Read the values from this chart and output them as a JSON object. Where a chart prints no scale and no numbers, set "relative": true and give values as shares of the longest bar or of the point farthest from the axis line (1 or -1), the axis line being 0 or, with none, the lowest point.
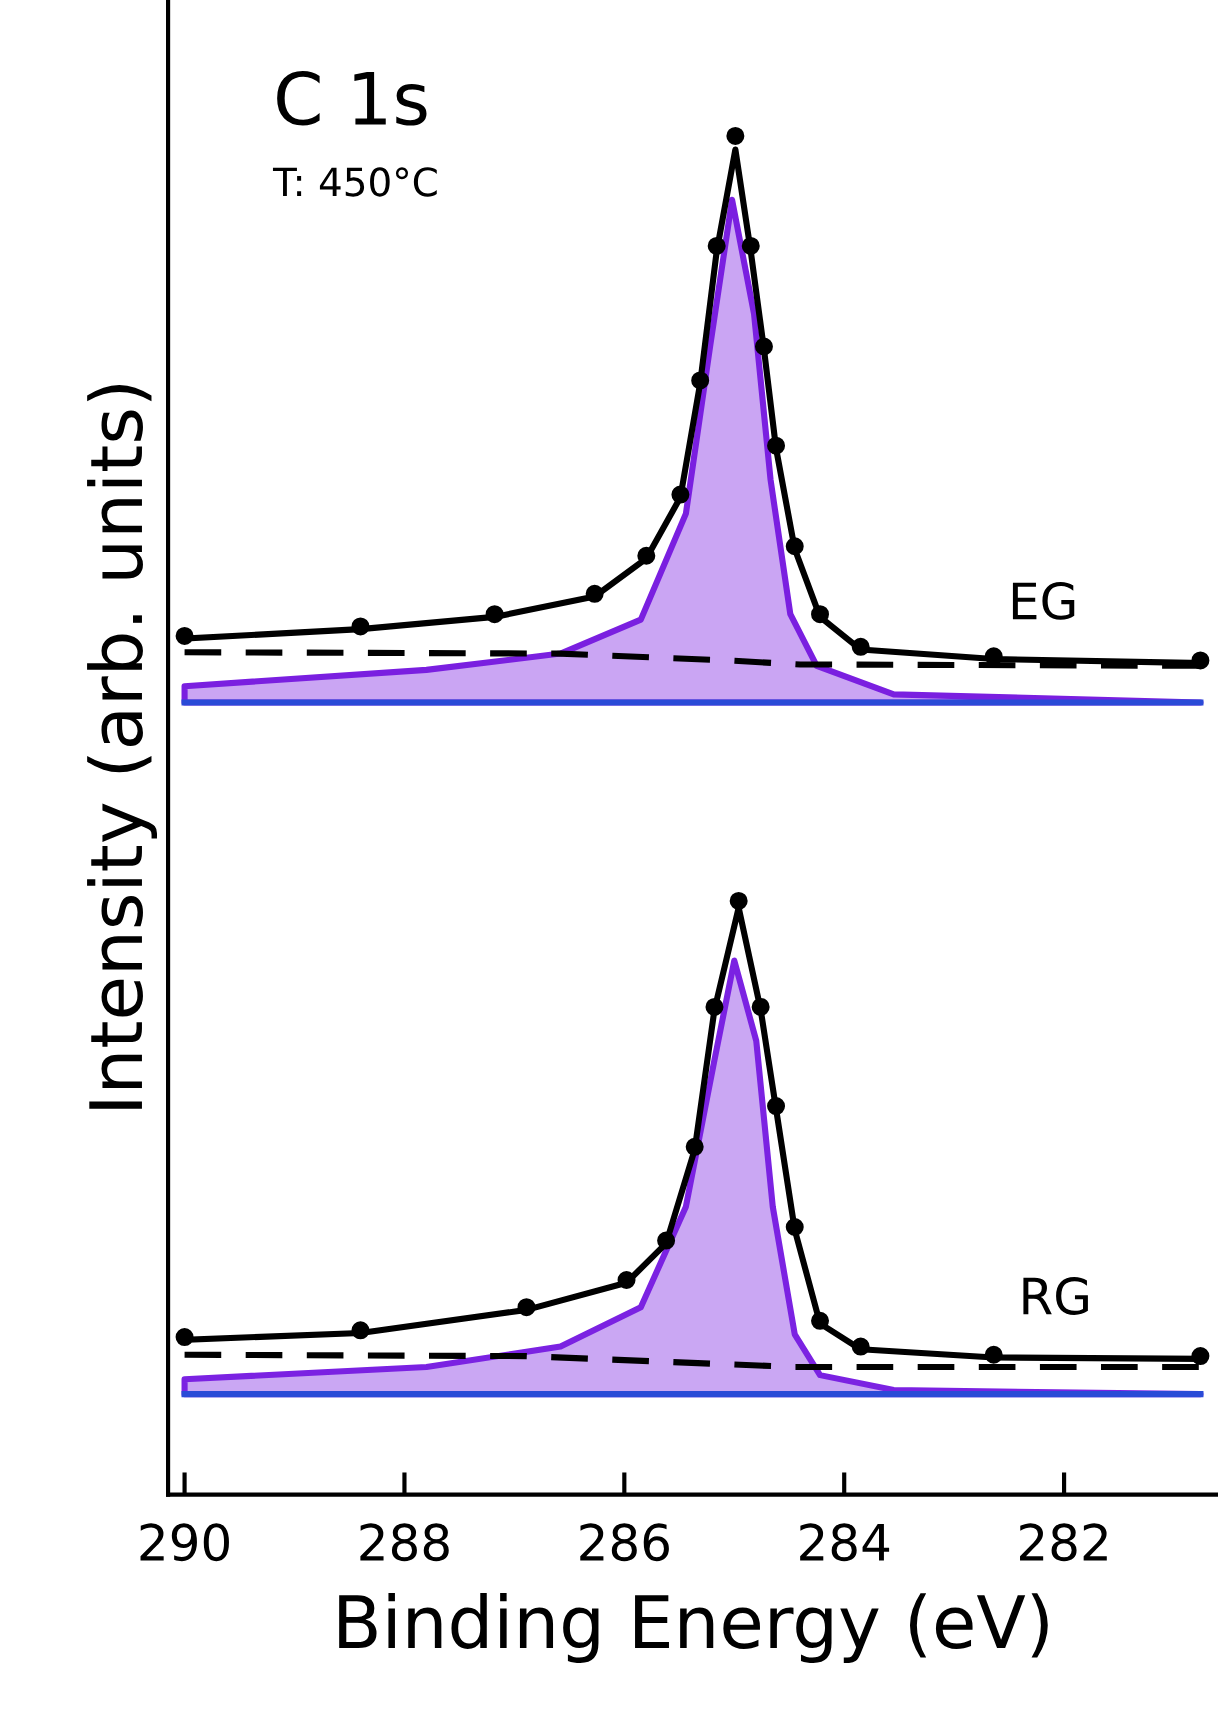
{
  "chart_data": {
    "type": "line",
    "relative": true,
    "xlabel": "Binding Energy (eV)",
    "ylabel": "Intensity (arb. units)",
    "xlim": [
      290.15,
      280.6
    ],
    "xticks": [
      290,
      288,
      286,
      284,
      282
    ],
    "grid": false,
    "legend": false,
    "tick_labels": "x",
    "series": [
      {
        "type": "scatter",
        "marker": "circle",
        "color": "#000000",
        "x": [
          290.0,
          288.4,
          287.18,
          286.27,
          285.8,
          285.49,
          285.31,
          285.16,
          284.99,
          284.85,
          284.73,
          284.62,
          284.45,
          284.22,
          283.85,
          282.64,
          280.76
        ],
        "values": [
          0.632,
          0.639,
          0.648,
          0.663,
          0.691,
          0.736,
          0.82,
          0.919,
          1.0,
          0.919,
          0.845,
          0.772,
          0.698,
          0.648,
          0.624,
          0.617,
          0.614
        ]
      },
      {
        "line_style": "solid",
        "color": "#000000",
        "x": [
          290.0,
          288.4,
          287.18,
          286.27,
          285.8,
          285.49,
          285.31,
          285.16,
          284.99,
          284.85,
          284.73,
          284.62,
          284.45,
          284.22,
          283.85,
          282.64,
          280.76
        ],
        "values": [
          0.63,
          0.637,
          0.646,
          0.661,
          0.689,
          0.734,
          0.818,
          0.915,
          0.99,
          0.915,
          0.843,
          0.77,
          0.696,
          0.646,
          0.622,
          0.615,
          0.612
        ]
      },
      {
        "type": "line",
        "line_style": "solid",
        "color": "#2a4bd7",
        "x": [
          290.0,
          287.8,
          286.58,
          285.85,
          285.44,
          285.22,
          285.02,
          284.82,
          284.67,
          284.49,
          284.25,
          283.55,
          280.76
        ],
        "values": [
          0.583,
          0.583,
          0.583,
          0.583,
          0.583,
          0.583,
          0.583,
          0.583,
          0.583,
          0.583,
          0.583,
          0.583,
          0.583
        ]
      },
      {
        "type": "area",
        "color": "#7a1fe0",
        "x": [
          290.0,
          287.8,
          286.58,
          285.85,
          285.44,
          285.22,
          285.02,
          284.82,
          284.67,
          284.49,
          284.25,
          283.55,
          280.76
        ],
        "values": [
          0.595,
          0.607,
          0.619,
          0.644,
          0.722,
          0.845,
          0.953,
          0.869,
          0.747,
          0.648,
          0.61,
          0.589,
          0.583
        ]
      },
      {
        "type": "line",
        "line_style": "dashed",
        "color": "#000000",
        "x": [
          290.0,
          286.58,
          285.07,
          284.4,
          280.76
        ],
        "values": [
          0.62,
          0.619,
          0.614,
          0.611,
          0.61
        ]
      },
      {
        "type": "scatter",
        "marker": "circle",
        "color": "#000000",
        "x": [
          290.0,
          288.4,
          286.89,
          285.98,
          285.62,
          285.36,
          285.18,
          284.96,
          284.76,
          284.62,
          284.45,
          284.22,
          283.85,
          282.64,
          280.76
        ],
        "values": [
          0.116,
          0.121,
          0.138,
          0.158,
          0.187,
          0.256,
          0.359,
          0.437,
          0.359,
          0.286,
          0.197,
          0.128,
          0.109,
          0.103,
          0.102
        ]
      },
      {
        "type": "line",
        "line_style": "solid",
        "color": "#000000",
        "x": [
          290.0,
          288.4,
          286.89,
          285.98,
          285.62,
          285.36,
          285.18,
          284.96,
          284.76,
          284.62,
          284.45,
          284.22,
          283.85,
          282.64,
          280.76
        ],
        "values": [
          0.114,
          0.119,
          0.136,
          0.156,
          0.185,
          0.254,
          0.357,
          0.432,
          0.357,
          0.284,
          0.195,
          0.126,
          0.107,
          0.101,
          0.1
        ]
      },
      {
        "type": "line",
        "line_style": "solid",
        "color": "#2a4bd7",
        "x": [
          290.0,
          287.8,
          286.58,
          285.85,
          285.44,
          285.18,
          285.0,
          284.8,
          284.65,
          284.45,
          284.22,
          283.55,
          280.76
        ],
        "values": [
          0.074,
          0.074,
          0.074,
          0.074,
          0.074,
          0.074,
          0.074,
          0.074,
          0.074,
          0.074,
          0.074,
          0.074,
          0.074
        ]
      },
      {
        "type": "area",
        "color": "#7b22e2",
        "x": [
          290.0,
          287.8,
          286.58,
          285.85,
          285.44,
          285.18,
          285.0,
          284.8,
          284.65,
          284.45,
          284.22,
          283.55,
          280.76
        ],
        "values": [
          0.085,
          0.094,
          0.109,
          0.138,
          0.212,
          0.32,
          0.393,
          0.334,
          0.212,
          0.118,
          0.088,
          0.077,
          0.074
        ]
      },
      {
        "type": "line",
        "line_style": "dashed",
        "color": "#000000",
        "x": [
          290.0,
          286.89,
          285.07,
          284.45,
          280.76
        ],
        "values": [
          0.103,
          0.102,
          0.096,
          0.094,
          0.094
        ]
      }
    ],
    "annotations": [
      "C 1s",
      "T: 450°C",
      "EG",
      "RG"
    ]
  }
}
